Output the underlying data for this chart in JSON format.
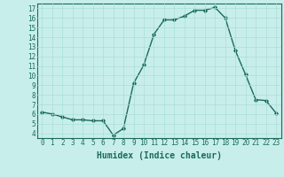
{
  "x": [
    0,
    1,
    2,
    3,
    4,
    5,
    6,
    7,
    8,
    9,
    10,
    11,
    12,
    13,
    14,
    15,
    16,
    17,
    18,
    19,
    20,
    21,
    22,
    23
  ],
  "y": [
    6.2,
    6.0,
    5.7,
    5.4,
    5.4,
    5.3,
    5.3,
    3.8,
    4.5,
    9.2,
    11.1,
    14.3,
    15.8,
    15.8,
    16.2,
    16.8,
    16.8,
    17.1,
    16.0,
    12.6,
    10.1,
    7.5,
    7.4,
    6.1
  ],
  "line_color": "#1a6b5a",
  "marker": "D",
  "marker_size": 1.8,
  "bg_color": "#c8eeeb",
  "grid_color": "#aaddd8",
  "xlabel": "Humidex (Indice chaleur)",
  "xlim": [
    -0.5,
    23.5
  ],
  "ylim": [
    3.5,
    17.5
  ],
  "yticks": [
    4,
    5,
    6,
    7,
    8,
    9,
    10,
    11,
    12,
    13,
    14,
    15,
    16,
    17
  ],
  "xticks": [
    0,
    1,
    2,
    3,
    4,
    5,
    6,
    7,
    8,
    9,
    10,
    11,
    12,
    13,
    14,
    15,
    16,
    17,
    18,
    19,
    20,
    21,
    22,
    23
  ],
  "tick_fontsize": 5.5,
  "xlabel_fontsize": 7.0,
  "linewidth": 1.0
}
